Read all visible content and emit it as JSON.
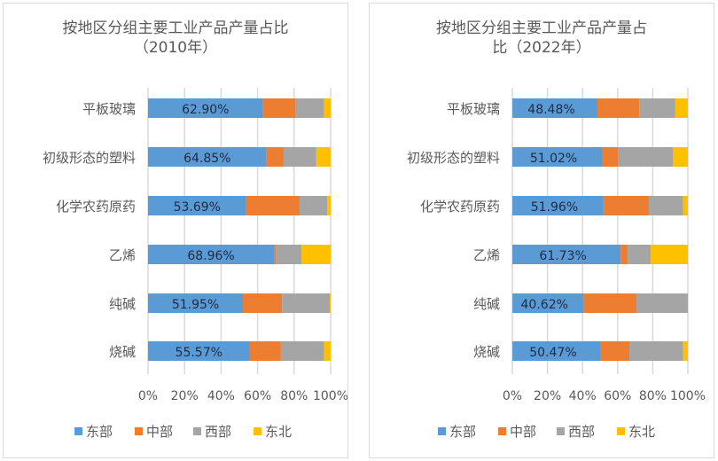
{
  "chart_data": [
    {
      "type": "bar",
      "orientation": "horizontal",
      "stacked": "percent",
      "title": "按地区分组主要工业产品产量占比（2010年）",
      "title_lines": [
        "按地区分组主要工业产品产量占比",
        "（2010年）"
      ],
      "categories": [
        "平板玻璃",
        "初级形态的塑料",
        "化学农药原药",
        "乙烯",
        "纯碱",
        "烧碱"
      ],
      "series": [
        {
          "name": "东部",
          "color": "#5b9bd5",
          "values": [
            62.9,
            64.85,
            53.69,
            68.96,
            51.95,
            55.57
          ]
        },
        {
          "name": "中部",
          "color": "#ed7d31",
          "values": [
            18.0,
            9.4,
            29.3,
            1.3,
            21.4,
            17.2
          ]
        },
        {
          "name": "西部",
          "color": "#a5a5a5",
          "values": [
            15.5,
            17.9,
            15.1,
            13.8,
            26.2,
            23.6
          ]
        },
        {
          "name": "东北",
          "color": "#ffc000",
          "values": [
            3.6,
            7.8,
            1.9,
            16.0,
            0.5,
            3.6
          ]
        }
      ],
      "data_labels": [
        "62.90%",
        "64.85%",
        "53.69%",
        "68.96%",
        "51.95%",
        "55.57%"
      ],
      "xticks": [
        "0%",
        "20%",
        "40%",
        "60%",
        "80%",
        "100%"
      ],
      "xlim": [
        0,
        100
      ],
      "grid": true,
      "legend": "bottom"
    },
    {
      "type": "bar",
      "orientation": "horizontal",
      "stacked": "percent",
      "title": "按地区分组主要工业产品产量占比（2022年）",
      "title_lines": [
        "按地区分组主要工业产品产量占",
        "比（2022年）"
      ],
      "categories": [
        "平板玻璃",
        "初级形态的塑料",
        "化学农药原药",
        "乙烯",
        "纯碱",
        "烧碱"
      ],
      "series": [
        {
          "name": "东部",
          "color": "#5b9bd5",
          "values": [
            48.48,
            51.02,
            51.96,
            61.73,
            40.62,
            50.47
          ]
        },
        {
          "name": "中部",
          "color": "#ed7d31",
          "values": [
            23.9,
            9.1,
            25.8,
            4.0,
            30.1,
            16.2
          ]
        },
        {
          "name": "西部",
          "color": "#a5a5a5",
          "values": [
            20.5,
            31.3,
            19.5,
            13.1,
            29.3,
            30.6
          ]
        },
        {
          "name": "东北",
          "color": "#ffc000",
          "values": [
            7.1,
            8.6,
            2.7,
            21.2,
            0.0,
            2.7
          ]
        }
      ],
      "data_labels": [
        "48.48%",
        "51.02%",
        "51.96%",
        "61.73%",
        "40.62%",
        "50.47%"
      ],
      "xticks": [
        "0%",
        "20%",
        "40%",
        "60%",
        "80%",
        "100%"
      ],
      "xlim": [
        0,
        100
      ],
      "grid": true,
      "legend": "bottom"
    }
  ]
}
